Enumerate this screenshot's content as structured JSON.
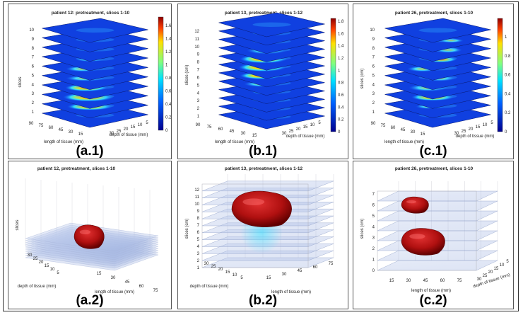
{
  "panels": [
    {
      "id": "a1",
      "title": "patient 12: pretreatment, slices 1-10",
      "caption": "(a.1)",
      "zlabel": "slices",
      "xlabel": "length of tissue (mm)",
      "ylabel": "depth of tissue (mm)",
      "zticks": [
        "1",
        "2",
        "3",
        "4",
        "5",
        "6",
        "7",
        "8",
        "9",
        "10"
      ],
      "xticks": [
        "90",
        "75",
        "60",
        "45",
        "30",
        "15"
      ],
      "yticks": [
        "30",
        "25",
        "20",
        "15",
        "10",
        "5"
      ],
      "cbticks": [
        "0",
        "0.2",
        "0.4",
        "0.6",
        "0.8",
        "1",
        "1.2",
        "1.4",
        "1.6"
      ]
    },
    {
      "id": "b1",
      "title": "patient 13, pretreatment, slices 1-12",
      "caption": "(b.1)",
      "zlabel": "slices (cm)",
      "xlabel": "length of tissue (mm)",
      "ylabel": "depth of tissue (mm)",
      "zticks": [
        "1",
        "2",
        "3",
        "4",
        "5",
        "6",
        "7",
        "8",
        "9",
        "10",
        "11",
        "12"
      ],
      "xticks": [
        "90",
        "75",
        "60",
        "45",
        "30",
        "15"
      ],
      "yticks": [
        "30",
        "25",
        "20",
        "15",
        "10",
        "5"
      ],
      "cbticks": [
        "0",
        "0.2",
        "0.4",
        "0.6",
        "0.8",
        "1",
        "1.2",
        "1.4",
        "1.6",
        "1.8"
      ]
    },
    {
      "id": "c1",
      "title": "patient 26, pretreatment, slices 1-10",
      "caption": "(c.1)",
      "zlabel": "slices (cm)",
      "xlabel": "length of tissue (mm)",
      "ylabel": "depth of tissue (mm)",
      "zticks": [
        "1",
        "2",
        "3",
        "4",
        "5",
        "6",
        "7",
        "8",
        "9",
        "10"
      ],
      "xticks": [
        "90",
        "75",
        "60",
        "45",
        "30",
        "15"
      ],
      "yticks": [
        "30",
        "25",
        "20",
        "15",
        "10",
        "5"
      ],
      "cbticks": [
        "0",
        "0.2",
        "0.4",
        "0.6",
        "0.8",
        "1"
      ]
    },
    {
      "id": "a2",
      "title": "patient 12, pretreatment, slices 1-10",
      "caption": "(a.2)",
      "zlabel": "slices",
      "xlabel": "length of tissue (mm)",
      "ylabel": "depth of tissue (mm)",
      "xticks": [
        "15",
        "30",
        "45",
        "60",
        "75"
      ],
      "yticks": [
        "30",
        "25",
        "20",
        "15",
        "10",
        "5"
      ]
    },
    {
      "id": "b2",
      "title": "patient 13, pretreatment, slices 1-12",
      "caption": "(b.2)",
      "zlabel": "slices (cm)",
      "xlabel": "length of tissue (mm)",
      "ylabel": "depth of tissue (mm)",
      "zticks": [
        "1",
        "2",
        "3",
        "4",
        "5",
        "6",
        "7",
        "8",
        "9",
        "10",
        "11",
        "12"
      ],
      "xticks": [
        "15",
        "30",
        "45",
        "60",
        "75"
      ],
      "yticks": [
        "30",
        "25",
        "20",
        "15",
        "10",
        "5"
      ]
    },
    {
      "id": "c2",
      "title": "patient 26, pretreatment, slices 1-10",
      "caption": "(c.2)",
      "zlabel": "slices (cm)",
      "xlabel": "length of tissue (mm)",
      "ylabel": "depth of tissue (mm)",
      "zticks": [
        "0",
        "1",
        "2",
        "3",
        "4",
        "5",
        "6",
        "7"
      ],
      "xticks": [
        "15",
        "30",
        "45",
        "60",
        "75"
      ],
      "yticks": [
        "30",
        "25",
        "20",
        "15",
        "10",
        "5"
      ]
    }
  ]
}
